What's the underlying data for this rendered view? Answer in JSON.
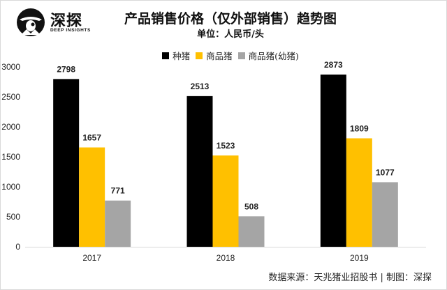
{
  "logo": {
    "name": "深探",
    "sub": "DEEP INSIGHTS",
    "icon": "detective-hat-icon"
  },
  "header": {
    "title": "产品销售价格（仅外部销售）趋势图",
    "subtitle": "单位：人民币/头"
  },
  "footer": {
    "source": "数据来源：天兆猪业招股书 | 制图：深探"
  },
  "chart_data": {
    "type": "bar",
    "title": "产品销售价格（仅外部销售）趋势图",
    "subtitle": "单位：人民币/头",
    "xlabel": "",
    "ylabel": "",
    "categories": [
      "2017",
      "2018",
      "2019"
    ],
    "series": [
      {
        "name": "种猪",
        "color": "#000000",
        "values": [
          2798,
          2513,
          2873
        ]
      },
      {
        "name": "商品猪",
        "color": "#FFC000",
        "values": [
          1657,
          1523,
          1809
        ]
      },
      {
        "name": "商品猪(幼猪)",
        "color": "#A5A5A5",
        "values": [
          771,
          508,
          1077
        ]
      }
    ],
    "ylim": [
      0,
      3000
    ],
    "yticks": [
      0,
      500,
      1000,
      1500,
      2000,
      2500,
      3000
    ],
    "grid": false,
    "legend": "top-center",
    "data_labels": true
  }
}
